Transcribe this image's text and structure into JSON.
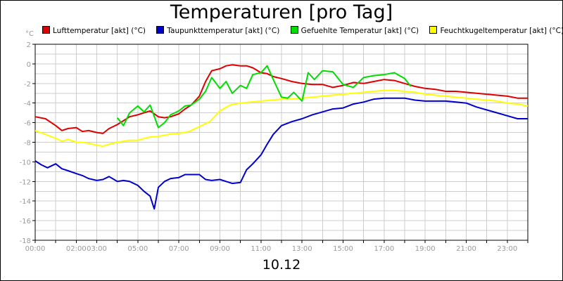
{
  "chart_data": {
    "type": "line",
    "title": "Temperaturen [pro Tag]",
    "subtitle": "10.12",
    "ylabel": "°C",
    "xlabel": "",
    "ylim": [
      -18,
      2
    ],
    "yticks": [
      2,
      0,
      -2,
      -4,
      -6,
      -8,
      -10,
      -12,
      -14,
      -16,
      -18
    ],
    "xlim": [
      0,
      24
    ],
    "xtick_labels": [
      "00:00",
      "02:00",
      "03:00",
      "05:00",
      "07:00",
      "09:00",
      "11:00",
      "13:00",
      "15:00",
      "17:00",
      "19:00",
      "21:00",
      "23:00"
    ],
    "xtick_positions": [
      0,
      2,
      3,
      5,
      7,
      9,
      11,
      13,
      15,
      17,
      19,
      21,
      23
    ],
    "grid": true,
    "legend_position": "top",
    "series": [
      {
        "name": "Lufttemperatur [akt] (°C)",
        "color": "#dd0000",
        "x": [
          0,
          0.5,
          1,
          1.3,
          1.6,
          2,
          2.3,
          2.6,
          3,
          3.3,
          3.6,
          4,
          4.3,
          4.6,
          5,
          5.3,
          5.6,
          6,
          6.3,
          6.6,
          7,
          7.3,
          7.6,
          8,
          8.3,
          8.6,
          9,
          9.3,
          9.6,
          10,
          10.3,
          10.6,
          11,
          11.3,
          11.6,
          12,
          12.5,
          13,
          13.5,
          14,
          14.5,
          15,
          15.5,
          16,
          16.5,
          17,
          17.5,
          18,
          18.5,
          19,
          19.5,
          20,
          20.5,
          21,
          21.5,
          22,
          22.5,
          23,
          23.5,
          24
        ],
        "y": [
          -5.4,
          -5.6,
          -6.3,
          -6.8,
          -6.6,
          -6.5,
          -6.9,
          -6.8,
          -7.0,
          -7.1,
          -6.6,
          -6.2,
          -5.8,
          -5.4,
          -5.2,
          -5.0,
          -4.8,
          -5.4,
          -5.5,
          -5.4,
          -5.1,
          -4.6,
          -4.2,
          -3.3,
          -1.8,
          -0.7,
          -0.5,
          -0.2,
          -0.1,
          -0.2,
          -0.2,
          -0.4,
          -0.9,
          -1.0,
          -1.3,
          -1.5,
          -1.8,
          -2.0,
          -2.1,
          -2.1,
          -2.4,
          -2.2,
          -1.9,
          -2.0,
          -1.8,
          -1.6,
          -1.7,
          -2.0,
          -2.3,
          -2.5,
          -2.6,
          -2.8,
          -2.8,
          -2.9,
          -3.0,
          -3.1,
          -3.2,
          -3.3,
          -3.5,
          -3.5
        ]
      },
      {
        "name": "Taupunkttemperatur [akt] (°C)",
        "color": "#0000cc",
        "x": [
          0,
          0.3,
          0.6,
          1,
          1.3,
          1.6,
          2,
          2.3,
          2.6,
          3,
          3.3,
          3.6,
          4,
          4.3,
          4.6,
          5,
          5.3,
          5.6,
          5.8,
          6,
          6.3,
          6.6,
          7,
          7.3,
          7.6,
          8,
          8.3,
          8.6,
          9,
          9.3,
          9.6,
          10,
          10.3,
          10.6,
          11,
          11.3,
          11.6,
          12,
          12.5,
          13,
          13.5,
          14,
          14.5,
          15,
          15.5,
          16,
          16.5,
          17,
          17.5,
          18,
          18.5,
          19,
          19.5,
          20,
          20.5,
          21,
          21.5,
          22,
          22.5,
          23,
          23.5,
          24
        ],
        "y": [
          -9.9,
          -10.3,
          -10.6,
          -10.2,
          -10.7,
          -10.9,
          -11.2,
          -11.4,
          -11.7,
          -11.9,
          -11.8,
          -11.5,
          -12.0,
          -11.9,
          -12.0,
          -12.4,
          -13.0,
          -13.5,
          -14.8,
          -12.6,
          -12.0,
          -11.7,
          -11.6,
          -11.3,
          -11.3,
          -11.3,
          -11.8,
          -11.9,
          -11.8,
          -12.0,
          -12.2,
          -12.1,
          -10.8,
          -10.2,
          -9.3,
          -8.2,
          -7.2,
          -6.3,
          -5.9,
          -5.6,
          -5.2,
          -4.9,
          -4.6,
          -4.5,
          -4.1,
          -3.9,
          -3.6,
          -3.5,
          -3.5,
          -3.5,
          -3.7,
          -3.8,
          -3.8,
          -3.8,
          -3.9,
          -4.0,
          -4.4,
          -4.7,
          -5.0,
          -5.3,
          -5.6,
          -5.6
        ]
      },
      {
        "name": "Gefuehlte Temperatur [akt] (°C)",
        "color": "#00dd00",
        "x": [
          4,
          4.3,
          4.6,
          5,
          5.3,
          5.6,
          6,
          6.3,
          6.6,
          7,
          7.3,
          7.6,
          8,
          8.3,
          8.6,
          9,
          9.3,
          9.6,
          10,
          10.3,
          10.6,
          11,
          11.3,
          11.6,
          12,
          12.3,
          12.6,
          13,
          13.3,
          13.6,
          14,
          14.5,
          15,
          15.5,
          16,
          16.5,
          17,
          17.5,
          18,
          18.3
        ],
        "y": [
          -5.5,
          -6.3,
          -5.0,
          -4.3,
          -4.9,
          -4.2,
          -6.5,
          -6.0,
          -5.2,
          -4.8,
          -4.3,
          -4.2,
          -3.6,
          -2.8,
          -1.4,
          -2.5,
          -1.8,
          -3.0,
          -2.2,
          -2.5,
          -1.1,
          -0.9,
          -0.2,
          -1.6,
          -3.4,
          -3.5,
          -2.9,
          -3.8,
          -0.9,
          -1.6,
          -0.7,
          -0.8,
          -2.1,
          -2.4,
          -1.4,
          -1.2,
          -1.1,
          -0.9,
          -1.5,
          -2.3
        ]
      },
      {
        "name": "Feuchtkugeltemperatur [akt] (°C)",
        "color": "#ffff00",
        "x": [
          0,
          0.5,
          1,
          1.3,
          1.6,
          2,
          2.3,
          2.6,
          3,
          3.3,
          3.6,
          4,
          4.3,
          4.6,
          5,
          5.5,
          6,
          6.5,
          7,
          7.5,
          8,
          8.5,
          9,
          9.5,
          10,
          10.5,
          11,
          11.5,
          12,
          12.5,
          13,
          13.5,
          14,
          14.5,
          15,
          15.5,
          16,
          16.5,
          17,
          17.5,
          18,
          18.5,
          19,
          19.5,
          20,
          20.5,
          21,
          21.5,
          22,
          22.5,
          23,
          23.5,
          24
        ],
        "y": [
          -6.8,
          -7.2,
          -7.6,
          -7.9,
          -7.7,
          -8.0,
          -8.0,
          -8.1,
          -8.3,
          -8.4,
          -8.2,
          -8.0,
          -7.9,
          -7.8,
          -7.8,
          -7.5,
          -7.4,
          -7.2,
          -7.1,
          -6.9,
          -6.4,
          -5.9,
          -4.8,
          -4.2,
          -4.0,
          -3.9,
          -3.8,
          -3.7,
          -3.6,
          -3.6,
          -3.5,
          -3.4,
          -3.3,
          -3.2,
          -3.1,
          -3.0,
          -2.9,
          -2.8,
          -2.7,
          -2.7,
          -2.8,
          -2.9,
          -3.1,
          -3.2,
          -3.3,
          -3.4,
          -3.5,
          -3.6,
          -3.7,
          -3.8,
          -4.0,
          -4.1,
          -4.3
        ]
      }
    ]
  }
}
